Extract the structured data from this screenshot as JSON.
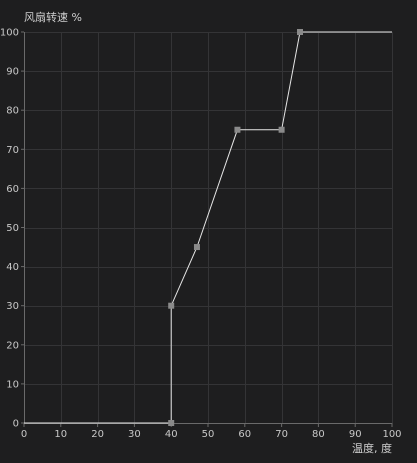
{
  "chart_data": {
    "type": "line",
    "ylabel": "风扇转速 %",
    "xlabel": "温度, 度",
    "xlim": [
      0,
      100
    ],
    "ylim": [
      0,
      100
    ],
    "x_ticks": [
      0,
      10,
      20,
      30,
      40,
      50,
      60,
      70,
      80,
      90,
      100
    ],
    "y_ticks": [
      0,
      10,
      20,
      30,
      40,
      50,
      60,
      70,
      80,
      90,
      100
    ],
    "grid": true,
    "series": [
      {
        "color": "#e6e6e6",
        "marker_color": "#8a8a8a",
        "line": [
          [
            0,
            0
          ],
          [
            40,
            0
          ],
          [
            40,
            30
          ],
          [
            47,
            45
          ],
          [
            58,
            75
          ],
          [
            70,
            75
          ],
          [
            75,
            100
          ],
          [
            100,
            100
          ]
        ],
        "points": [
          [
            40,
            0
          ],
          [
            40,
            30
          ],
          [
            47,
            45
          ],
          [
            58,
            75
          ],
          [
            70,
            75
          ],
          [
            75,
            100
          ]
        ]
      }
    ]
  }
}
